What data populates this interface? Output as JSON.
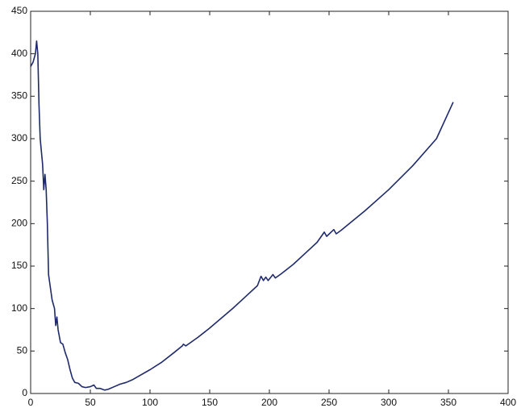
{
  "chart_data": {
    "type": "line",
    "x": [
      0,
      2,
      4,
      5,
      6,
      7,
      8,
      10,
      11,
      12,
      13,
      14,
      15,
      16,
      18,
      20,
      21,
      22,
      23,
      25,
      27,
      29,
      31,
      33,
      35,
      37,
      40,
      43,
      46,
      50,
      53,
      55,
      58,
      62,
      65,
      70,
      75,
      80,
      85,
      90,
      100,
      110,
      120,
      127,
      128,
      130,
      140,
      150,
      160,
      170,
      180,
      190,
      193,
      195,
      197,
      199,
      203,
      205,
      210,
      220,
      230,
      240,
      246,
      248,
      254,
      256,
      260,
      280,
      300,
      320,
      340,
      354
    ],
    "series": [
      {
        "color": "#1f2a6b",
        "values": [
          385,
          390,
          400,
          415,
          400,
          340,
          300,
          270,
          240,
          258,
          240,
          200,
          140,
          130,
          110,
          100,
          80,
          90,
          75,
          60,
          58,
          48,
          40,
          28,
          18,
          13,
          12,
          8,
          7,
          8,
          10,
          6,
          6,
          4,
          5,
          8,
          11,
          13,
          16,
          20,
          28,
          37,
          48,
          56,
          58,
          56,
          66,
          77,
          89,
          101,
          114,
          127,
          138,
          133,
          137,
          133,
          140,
          136,
          141,
          152,
          165,
          178,
          190,
          185,
          193,
          188,
          192,
          215,
          240,
          268,
          300,
          343
        ]
      }
    ],
    "xlim": [
      0,
      400
    ],
    "xticks": [
      0,
      50,
      100,
      150,
      200,
      250,
      300,
      350,
      400
    ],
    "ylim": [
      0,
      450
    ],
    "yticks": [
      0,
      50,
      100,
      150,
      200,
      250,
      300,
      350,
      400,
      450
    ]
  }
}
